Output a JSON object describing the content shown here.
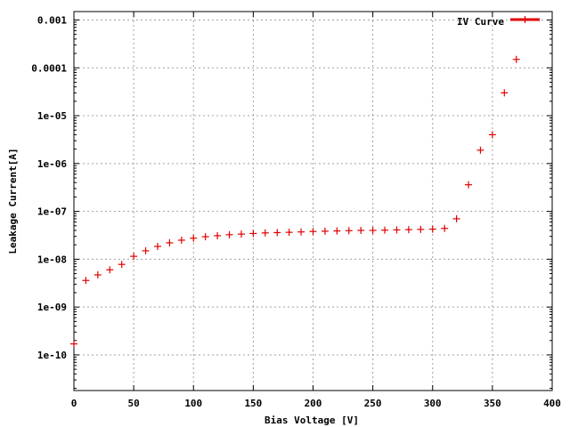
{
  "chart_data": {
    "type": "scatter",
    "xlabel": "Bias Voltage [V]",
    "ylabel": "Leakage Current[A]",
    "xlim": [
      0,
      400
    ],
    "ylim": [
      1.8e-11,
      0.0015
    ],
    "x_scale": "linear",
    "y_scale": "log",
    "grid": true,
    "legend_position": "top-right",
    "x_ticks": [
      "0",
      "50",
      "100",
      "150",
      "200",
      "250",
      "300",
      "350",
      "400"
    ],
    "y_ticks": [
      "1e-10",
      "1e-09",
      "1e-08",
      "1e-07",
      "1e-06",
      "1e-05",
      "0.0001",
      "0.001"
    ],
    "series": [
      {
        "name": "IV Curve",
        "color": "#e00000",
        "marker": "plus",
        "x": [
          0,
          10,
          20,
          30,
          40,
          50,
          60,
          70,
          80,
          90,
          100,
          110,
          120,
          130,
          140,
          150,
          160,
          170,
          180,
          190,
          200,
          210,
          220,
          230,
          240,
          250,
          260,
          270,
          280,
          290,
          300,
          310,
          320,
          330,
          340,
          350,
          360,
          370
        ],
        "y": [
          1.7e-10,
          3.6e-09,
          4.7e-09,
          6e-09,
          7.8e-09,
          1.15e-08,
          1.5e-08,
          1.85e-08,
          2.2e-08,
          2.5e-08,
          2.75e-08,
          2.95e-08,
          3.1e-08,
          3.25e-08,
          3.35e-08,
          3.45e-08,
          3.55e-08,
          3.6e-08,
          3.65e-08,
          3.72e-08,
          3.8e-08,
          3.85e-08,
          3.9e-08,
          3.95e-08,
          4e-08,
          4e-08,
          4.05e-08,
          4.1e-08,
          4.15e-08,
          4.2e-08,
          4.25e-08,
          4.4e-08,
          7e-08,
          3.6e-07,
          1.9e-06,
          4e-06,
          3e-05,
          0.00015
        ]
      }
    ]
  }
}
